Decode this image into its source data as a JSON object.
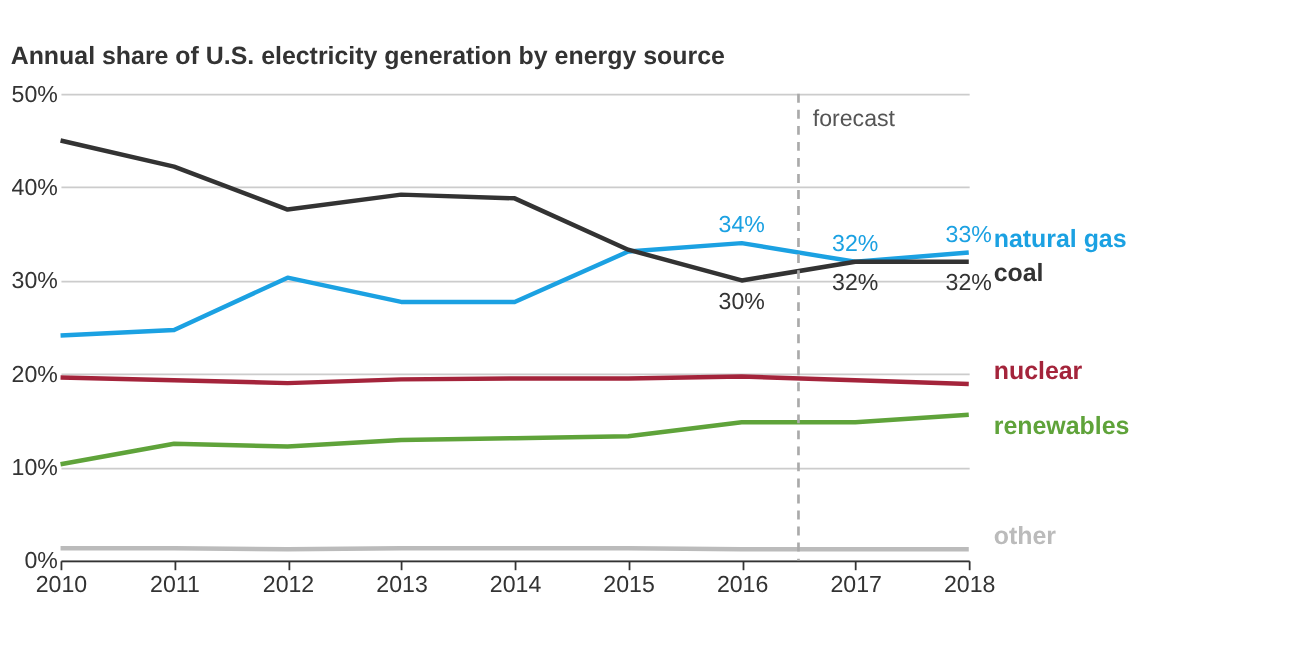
{
  "chart_data": {
    "type": "line",
    "title": "Annual share of U.S. electricity generation by energy source",
    "x": [
      2010,
      2011,
      2012,
      2013,
      2014,
      2015,
      2016,
      2017,
      2018
    ],
    "xlim": [
      2010,
      2018
    ],
    "xticks": [
      2010,
      2011,
      2012,
      2013,
      2014,
      2015,
      2016,
      2017,
      2018
    ],
    "ylim": [
      0,
      50
    ],
    "yticks": [
      {
        "value": 0,
        "label": "0%"
      },
      {
        "value": 10,
        "label": "10%"
      },
      {
        "value": 20,
        "label": "20%"
      },
      {
        "value": 30,
        "label": "30%"
      },
      {
        "value": 40,
        "label": "40%"
      },
      {
        "value": 50,
        "label": "50%"
      }
    ],
    "grid": "y",
    "legend": false,
    "marker": "none",
    "line_style": "solid",
    "series": [
      {
        "name": "natural gas",
        "color": "#1ba1e2",
        "values": [
          24.1,
          24.7,
          30.3,
          27.7,
          27.7,
          33.1,
          34,
          32,
          33
        ],
        "value_labels": [
          null,
          null,
          null,
          null,
          null,
          null,
          "34%",
          "32%",
          "33%"
        ]
      },
      {
        "name": "coal",
        "color": "#333333",
        "values": [
          45.0,
          42.2,
          37.6,
          39.2,
          38.8,
          33.3,
          30,
          32,
          32
        ],
        "value_labels": [
          null,
          null,
          null,
          null,
          null,
          null,
          "30%",
          "32%",
          "32%"
        ]
      },
      {
        "name": "nuclear",
        "color": "#a4243b",
        "values": [
          19.6,
          19.3,
          19.0,
          19.4,
          19.5,
          19.5,
          19.7,
          19.3,
          18.9
        ]
      },
      {
        "name": "renewables",
        "color": "#5fa33a",
        "values": [
          10.3,
          12.5,
          12.2,
          12.9,
          13.1,
          13.3,
          14.8,
          14.8,
          15.6
        ]
      },
      {
        "name": "other",
        "color": "#bbbbbb",
        "values": [
          1.3,
          1.3,
          1.2,
          1.3,
          1.3,
          1.3,
          1.2,
          1.2,
          1.2
        ]
      }
    ],
    "ref_lines": [
      {
        "axis": "x",
        "value": 2016.5,
        "label": "forecast",
        "color": "#aaaaaa",
        "line_style": "dashed"
      }
    ]
  }
}
